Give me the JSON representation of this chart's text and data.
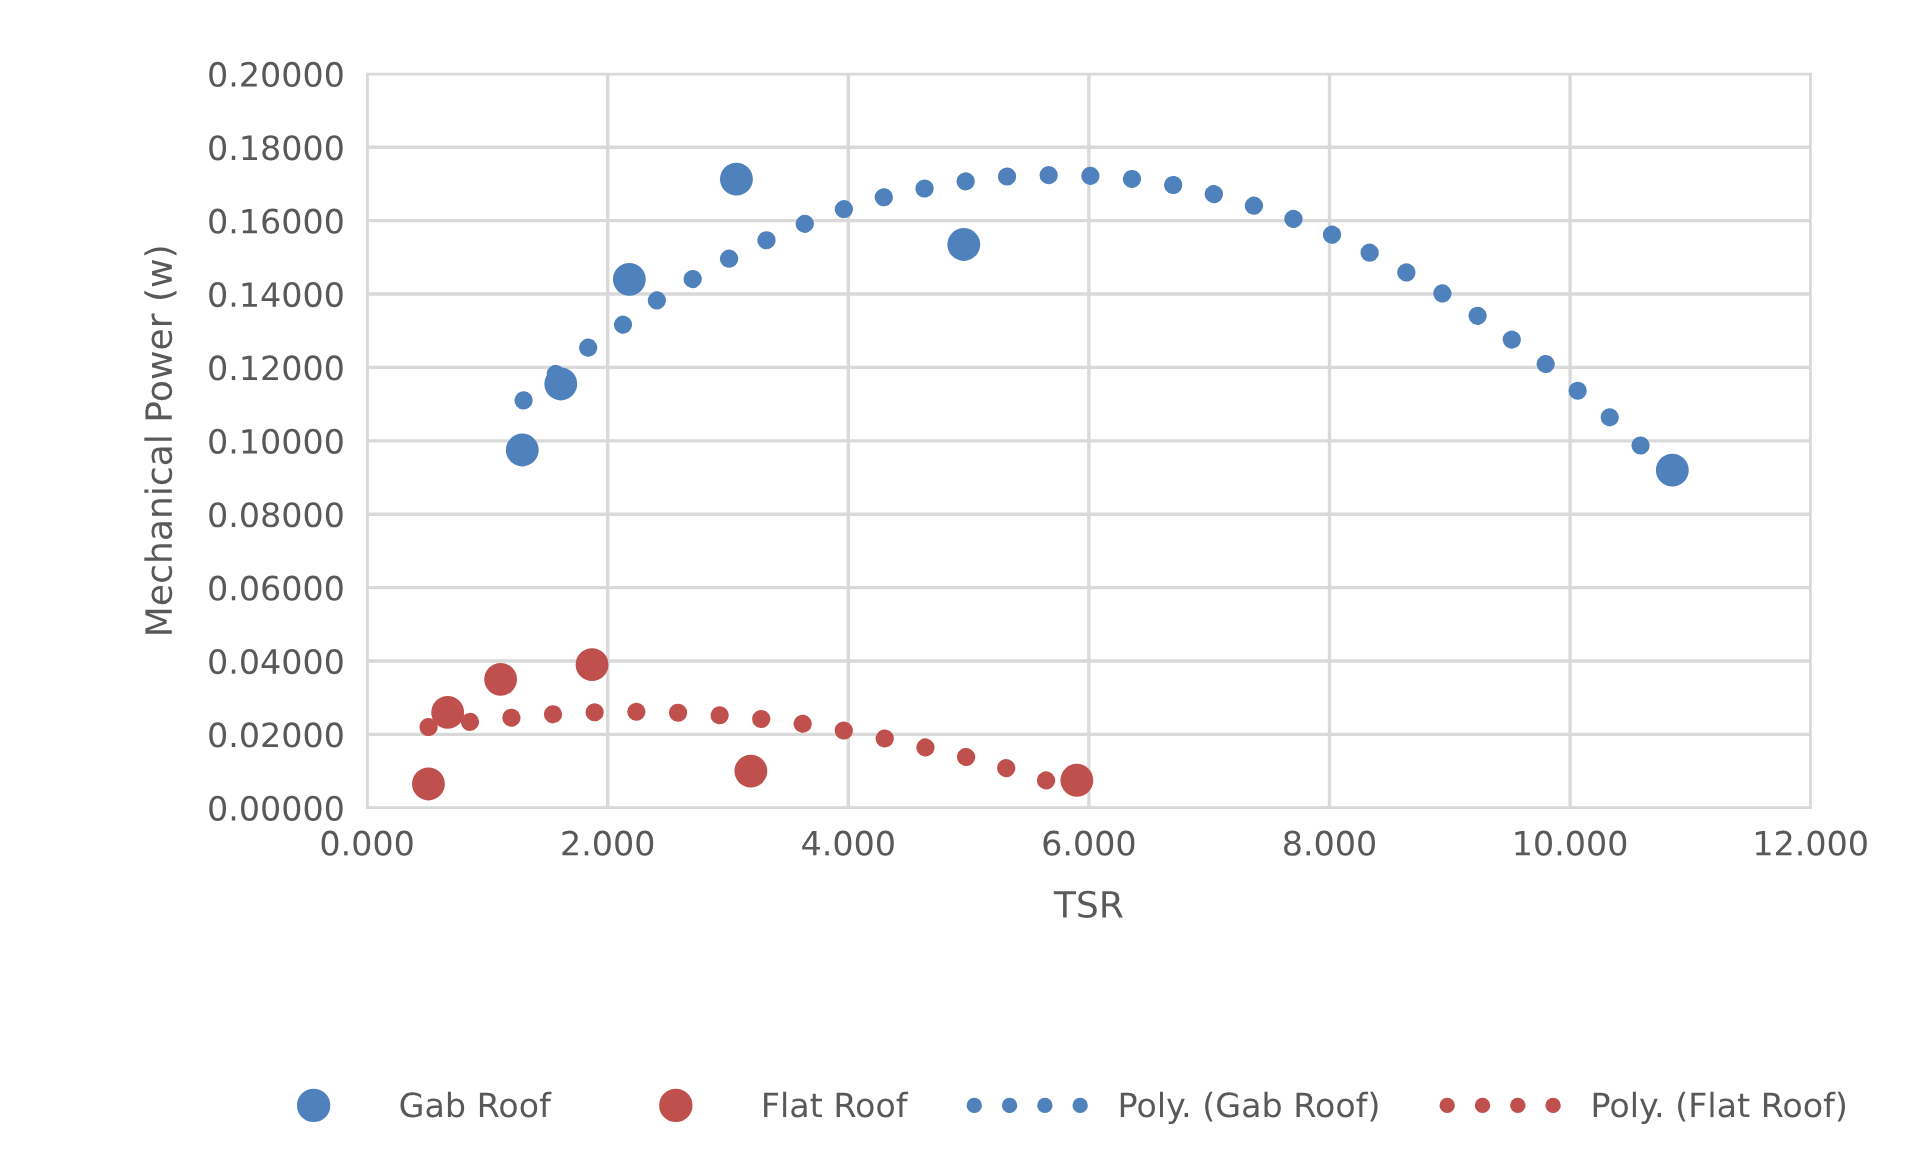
{
  "chart_data": {
    "type": "scatter",
    "xlabel": "TSR",
    "ylabel": "Mechanical Power (w)",
    "xlim": [
      0,
      12
    ],
    "xticks": [
      {
        "value": 0,
        "label": "0.000"
      },
      {
        "value": 2,
        "label": "2.000"
      },
      {
        "value": 4,
        "label": "4.000"
      },
      {
        "value": 6,
        "label": "6.000"
      },
      {
        "value": 8,
        "label": "8.000"
      },
      {
        "value": 10,
        "label": "10.000"
      },
      {
        "value": 12,
        "label": "12.000"
      }
    ],
    "ylim": [
      0,
      0.2
    ],
    "yticks": [
      {
        "value": 0,
        "label": "0.00000"
      },
      {
        "value": 0.02,
        "label": "0.02000"
      },
      {
        "value": 0.04,
        "label": "0.04000"
      },
      {
        "value": 0.06,
        "label": "0.06000"
      },
      {
        "value": 0.08,
        "label": "0.08000"
      },
      {
        "value": 0.1,
        "label": "0.10000"
      },
      {
        "value": 0.12,
        "label": "0.12000"
      },
      {
        "value": 0.14,
        "label": "0.14000"
      },
      {
        "value": 0.16,
        "label": "0.16000"
      },
      {
        "value": 0.18,
        "label": "0.18000"
      },
      {
        "value": 0.2,
        "label": "0.20000"
      }
    ],
    "grid": true,
    "legend": "bottom",
    "series": [
      {
        "name": "Gab Roof",
        "marker": "circle",
        "color": "#4f81bd",
        "x": [
          1.29,
          1.61,
          2.18,
          3.07,
          4.96,
          10.85
        ],
        "values": [
          0.0975,
          0.1155,
          0.144,
          0.1713,
          0.1535,
          0.092
        ]
      },
      {
        "name": "Flat Roof",
        "marker": "circle",
        "color": "#c0504d",
        "x": [
          0.51,
          0.67,
          1.11,
          1.87,
          3.19,
          5.9
        ],
        "values": [
          0.0065,
          0.026,
          0.035,
          0.039,
          0.01,
          0.0075
        ]
      },
      {
        "name": "Poly. (Gab Roof)",
        "type": "line",
        "line_style": "dotted",
        "color": "#4f81bd",
        "x": [
          1.3,
          1.56,
          1.82,
          2.1,
          2.37,
          2.65,
          2.94,
          3.24,
          3.55,
          3.86,
          4.18,
          4.51,
          4.84,
          5.17,
          5.51,
          5.84,
          6.19,
          6.53,
          6.86,
          7.18,
          7.5,
          7.82,
          8.13,
          8.43,
          8.72,
          9.01,
          9.3,
          9.57,
          9.85,
          10.1,
          10.36,
          10.6,
          10.85
        ],
        "values": [
          0.111,
          0.118,
          0.125,
          0.131,
          0.1375,
          0.143,
          0.1485,
          0.1535,
          0.158,
          0.162,
          0.1655,
          0.168,
          0.17,
          0.1717,
          0.1724,
          0.1724,
          0.172,
          0.1707,
          0.1688,
          0.166,
          0.1628,
          0.1591,
          0.1546,
          0.1497,
          0.1444,
          0.1388,
          0.1326,
          0.1263,
          0.1197,
          0.1126,
          0.1056,
          0.0983,
          0.0919
        ]
      },
      {
        "name": "Poly. (Flat Roof)",
        "type": "line",
        "line_style": "dotted",
        "color": "#c0504d",
        "x": [
          0.51,
          0.85,
          1.18,
          1.51,
          1.84,
          2.18,
          2.52,
          2.86,
          3.19,
          3.52,
          3.84,
          4.17,
          4.49,
          4.82,
          5.14,
          5.46,
          5.79,
          5.9
        ],
        "values": [
          0.022,
          0.0234,
          0.0245,
          0.0254,
          0.026,
          0.0262,
          0.026,
          0.0254,
          0.0245,
          0.0234,
          0.0218,
          0.0198,
          0.0176,
          0.0151,
          0.0126,
          0.0093,
          0.006,
          0.0048
        ]
      }
    ]
  }
}
